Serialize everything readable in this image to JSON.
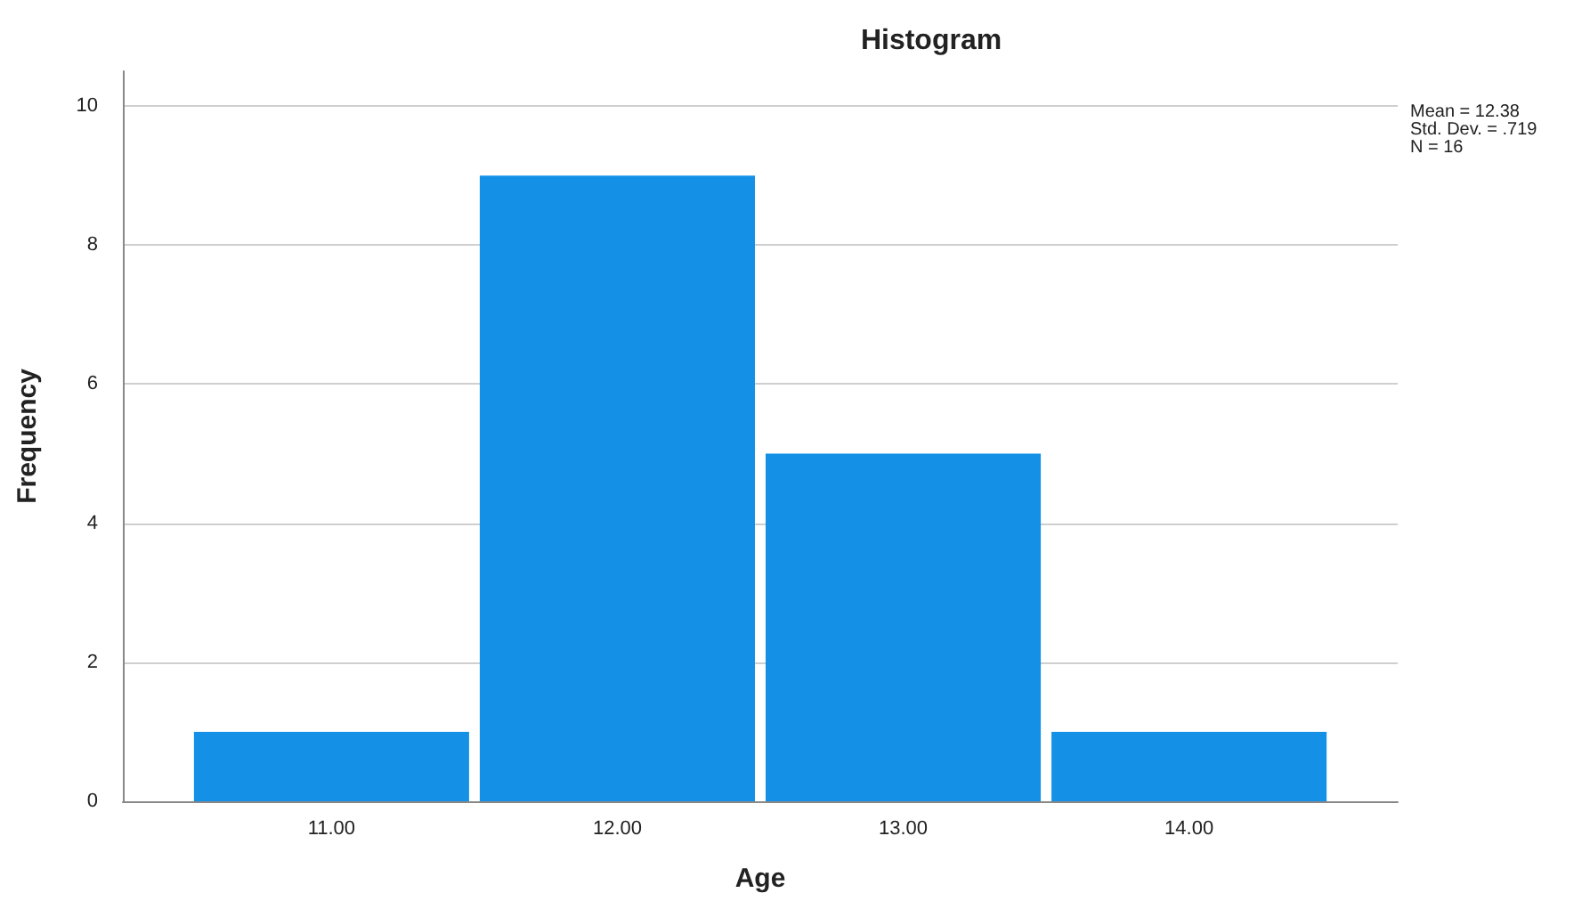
{
  "chart_data": {
    "type": "histogram",
    "title": "Histogram",
    "xlabel": "Age",
    "ylabel": "Frequency",
    "bins": [
      10.5,
      11.5,
      12.5,
      13.5,
      14.5
    ],
    "values": [
      1,
      9,
      5,
      1
    ],
    "color": "#1491e6",
    "xlim": [
      10.27,
      14.73
    ],
    "xticks": [
      {
        "value": 11,
        "label": "11.00"
      },
      {
        "value": 12,
        "label": "12.00"
      },
      {
        "value": 13,
        "label": "13.00"
      },
      {
        "value": 14,
        "label": "14.00"
      }
    ],
    "ylim": [
      0,
      10.5
    ],
    "yticks": [
      0,
      2,
      4,
      6,
      8,
      10
    ],
    "grid": "y",
    "annotations": [
      "Mean = 12.38",
      "Std. Dev. = .719",
      "N = 16"
    ]
  }
}
